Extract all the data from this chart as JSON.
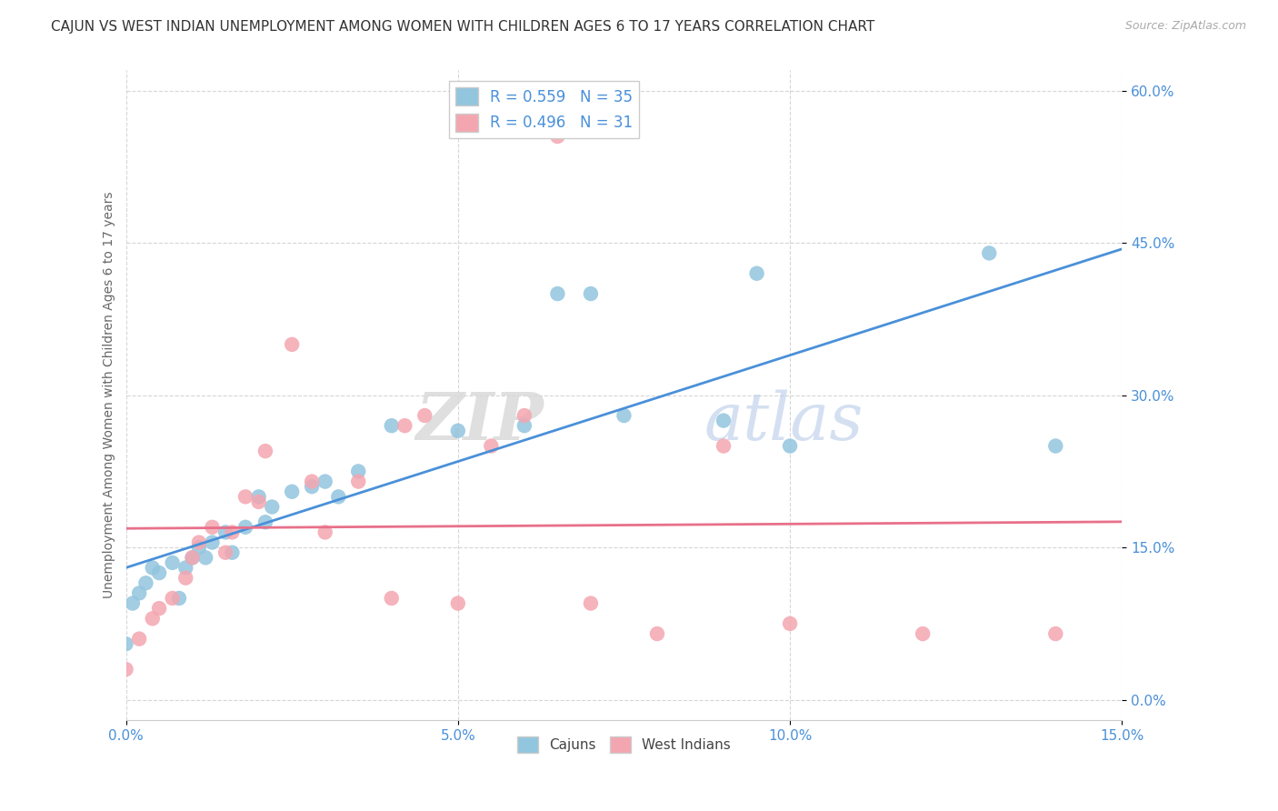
{
  "title": "CAJUN VS WEST INDIAN UNEMPLOYMENT AMONG WOMEN WITH CHILDREN AGES 6 TO 17 YEARS CORRELATION CHART",
  "source": "Source: ZipAtlas.com",
  "ylabel": "Unemployment Among Women with Children Ages 6 to 17 years",
  "xlabel": "",
  "xlim": [
    0.0,
    0.15
  ],
  "ylim": [
    -0.02,
    0.62
  ],
  "xticks": [
    0.0,
    0.05,
    0.1,
    0.15
  ],
  "xtick_labels": [
    "0.0%",
    "5.0%",
    "10.0%",
    "15.0%"
  ],
  "ytick_positions": [
    0.0,
    0.15,
    0.3,
    0.45,
    0.6
  ],
  "ytick_labels": [
    "0.0%",
    "15.0%",
    "30.0%",
    "45.0%",
    "60.0%"
  ],
  "cajun_color": "#92c5de",
  "west_indian_color": "#f4a6b0",
  "cajun_line_color": "#4a90d9",
  "west_indian_line_color": "#e8708a",
  "R_cajun": 0.559,
  "N_cajun": 35,
  "R_west_indian": 0.496,
  "N_west_indian": 31,
  "watermark_zip": "ZIP",
  "watermark_atlas": "atlas",
  "legend_labels": [
    "Cajuns",
    "West Indians"
  ],
  "cajun_x": [
    0.0,
    0.001,
    0.002,
    0.003,
    0.004,
    0.005,
    0.007,
    0.008,
    0.009,
    0.01,
    0.011,
    0.012,
    0.013,
    0.015,
    0.016,
    0.018,
    0.02,
    0.021,
    0.022,
    0.025,
    0.028,
    0.03,
    0.032,
    0.035,
    0.04,
    0.05,
    0.06,
    0.065,
    0.07,
    0.075,
    0.09,
    0.095,
    0.1,
    0.13,
    0.14
  ],
  "cajun_y": [
    0.055,
    0.095,
    0.105,
    0.115,
    0.13,
    0.125,
    0.135,
    0.1,
    0.13,
    0.14,
    0.15,
    0.14,
    0.155,
    0.165,
    0.145,
    0.17,
    0.2,
    0.175,
    0.19,
    0.205,
    0.21,
    0.215,
    0.2,
    0.225,
    0.27,
    0.265,
    0.27,
    0.4,
    0.4,
    0.28,
    0.275,
    0.42,
    0.25,
    0.44,
    0.25
  ],
  "west_indian_x": [
    0.0,
    0.002,
    0.004,
    0.005,
    0.007,
    0.009,
    0.01,
    0.011,
    0.013,
    0.015,
    0.016,
    0.018,
    0.02,
    0.021,
    0.025,
    0.028,
    0.03,
    0.035,
    0.04,
    0.042,
    0.045,
    0.05,
    0.055,
    0.06,
    0.065,
    0.07,
    0.08,
    0.09,
    0.1,
    0.12,
    0.14
  ],
  "west_indian_y": [
    0.03,
    0.06,
    0.08,
    0.09,
    0.1,
    0.12,
    0.14,
    0.155,
    0.17,
    0.145,
    0.165,
    0.2,
    0.195,
    0.245,
    0.35,
    0.215,
    0.165,
    0.215,
    0.1,
    0.27,
    0.28,
    0.095,
    0.25,
    0.28,
    0.555,
    0.095,
    0.065,
    0.25,
    0.075,
    0.065,
    0.065
  ],
  "grid_color": "#cccccc",
  "title_fontsize": 11,
  "tick_color": "#4a90d9",
  "ylabel_color": "#666666",
  "background_color": "#ffffff"
}
